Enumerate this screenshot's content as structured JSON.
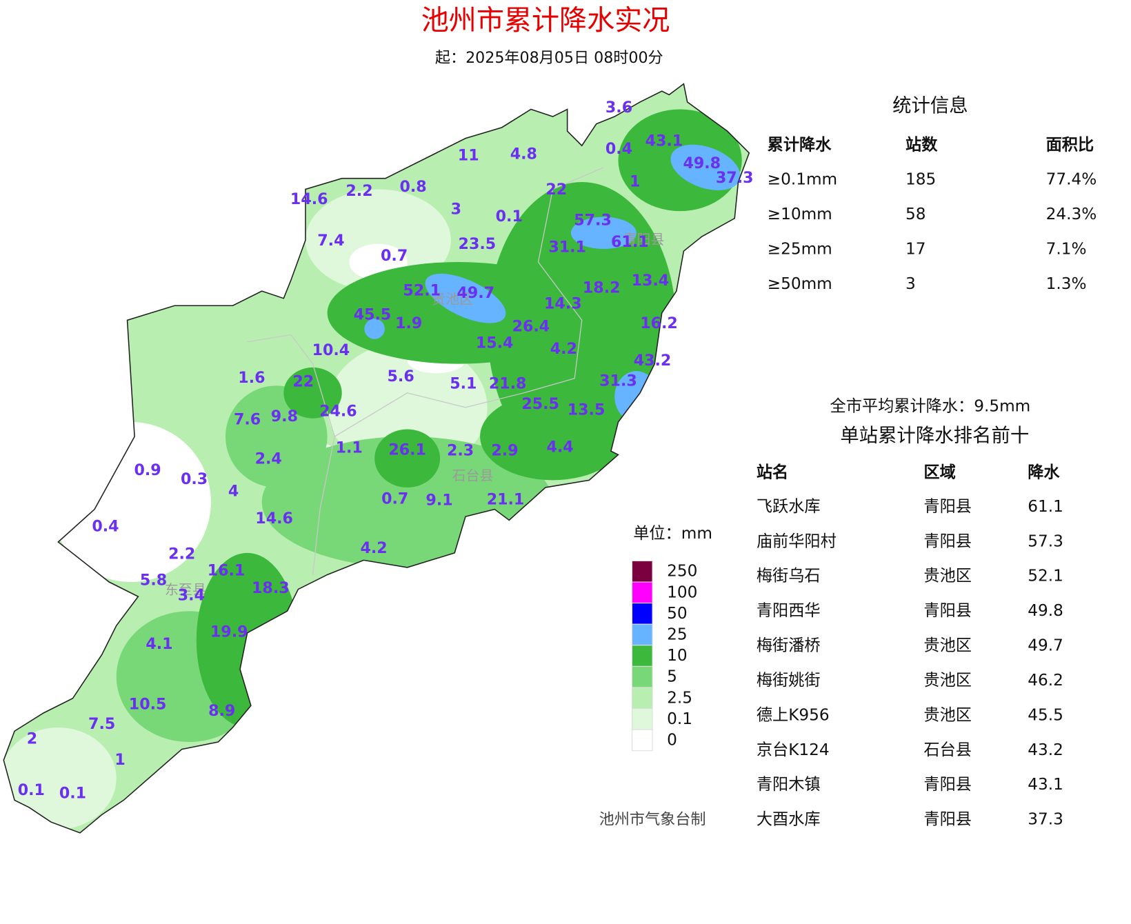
{
  "header": {
    "title": "池州市累计降水实况",
    "subtitle": "起：2025年08月05日 08时00分"
  },
  "map": {
    "district_labels": [
      "贵池区",
      "石台县",
      "东至县",
      "青阳县"
    ],
    "station_values": [
      3.6,
      43.1,
      0.4,
      49.8,
      37.3,
      1,
      11,
      4.8,
      14.6,
      2.2,
      0.8,
      22,
      3,
      0.1,
      57.3,
      61.1,
      7.4,
      0.7,
      23.5,
      31.1,
      13.4,
      18.2,
      52.1,
      49.7,
      14.3,
      45.5,
      1.9,
      26.4,
      16.2,
      15.4,
      10.4,
      4.2,
      43.2,
      1.6,
      22,
      5.6,
      5.1,
      21.8,
      31.3,
      25.5,
      13.5,
      7.6,
      9.8,
      24.6,
      2.4,
      1.1,
      26.1,
      2.3,
      2.9,
      4.4,
      0.9,
      0.3,
      4,
      0.7,
      9.1,
      21.1,
      14.6,
      0.4,
      4.2,
      2.2,
      16.1,
      5.8,
      18.3,
      3.4,
      19.9,
      4.1,
      10.5,
      8.9,
      7.5,
      2,
      1,
      0.1,
      0.1
    ]
  },
  "legend": {
    "title": "单位：mm",
    "levels": [
      {
        "value": 250,
        "color": "#7a0040"
      },
      {
        "value": 100,
        "color": "#ff00ff"
      },
      {
        "value": 50,
        "color": "#0000ff"
      },
      {
        "value": 25,
        "color": "#66b3ff"
      },
      {
        "value": 10,
        "color": "#3cb83c"
      },
      {
        "value": 5,
        "color": "#78d878"
      },
      {
        "value": 2.5,
        "color": "#b8efb0"
      },
      {
        "value": 0.1,
        "color": "#dff7db"
      },
      {
        "value": 0,
        "color": "#ffffff"
      }
    ]
  },
  "credit": "池州市气象台制",
  "stats": {
    "title": "统计信息",
    "columns": [
      "累计降水",
      "站数",
      "面积比"
    ],
    "rows": [
      [
        "≥0.1mm",
        "185",
        "77.4%"
      ],
      [
        "≥10mm",
        "58",
        "24.3%"
      ],
      [
        "≥25mm",
        "17",
        "7.1%"
      ],
      [
        "≥50mm",
        "3",
        "1.3%"
      ]
    ]
  },
  "average": "全市平均累计降水：9.5mm",
  "ranking": {
    "title": "单站累计降水排名前十",
    "columns": [
      "站名",
      "区域",
      "降水"
    ],
    "rows": [
      [
        "飞跃水库",
        "青阳县",
        "61.1"
      ],
      [
        "庙前华阳村",
        "青阳县",
        "57.3"
      ],
      [
        "梅街乌石",
        "贵池区",
        "52.1"
      ],
      [
        "青阳西华",
        "青阳县",
        "49.8"
      ],
      [
        "梅街潘桥",
        "贵池区",
        "49.7"
      ],
      [
        "梅街姚街",
        "贵池区",
        "46.2"
      ],
      [
        "德上K956",
        "贵池区",
        "45.5"
      ],
      [
        "京台K124",
        "石台县",
        "43.2"
      ],
      [
        "青阳木镇",
        "青阳县",
        "43.1"
      ],
      [
        "大酉水库",
        "青阳县",
        "37.3"
      ]
    ]
  }
}
